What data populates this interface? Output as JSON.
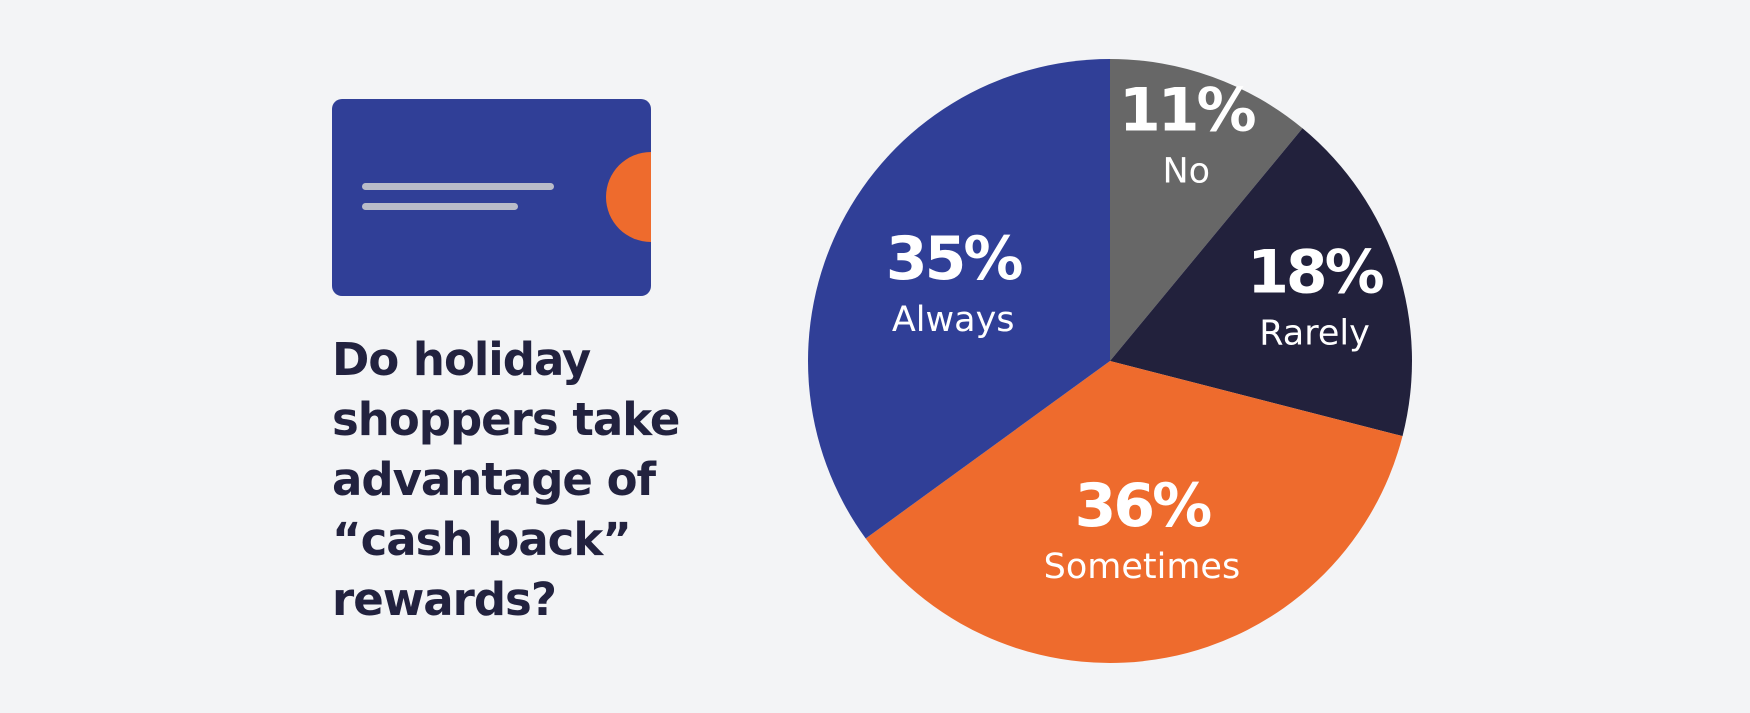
{
  "question": "Do holiday shoppers take advantage of “cash back” rewards?",
  "colors": {
    "background": "#f3f4f6",
    "card": "#303f97",
    "card_lines": "#b9bcc9",
    "chip": "#ee6b2d",
    "question_text": "#22223f",
    "label_text": "#ffffff"
  },
  "icon": "credit-card-icon",
  "chart_data": {
    "type": "pie",
    "unit": "%",
    "start_angle_deg": 0,
    "direction": "clockwise",
    "slices": [
      {
        "label": "No",
        "value": 11,
        "display": "11%",
        "color": "#676767"
      },
      {
        "label": "Rarely",
        "value": 18,
        "display": "18%",
        "color": "#22213c"
      },
      {
        "label": "Sometimes",
        "value": 36,
        "display": "36%",
        "color": "#ee6b2d"
      },
      {
        "label": "Always",
        "value": 35,
        "display": "35%",
        "color": "#303f97"
      }
    ]
  }
}
